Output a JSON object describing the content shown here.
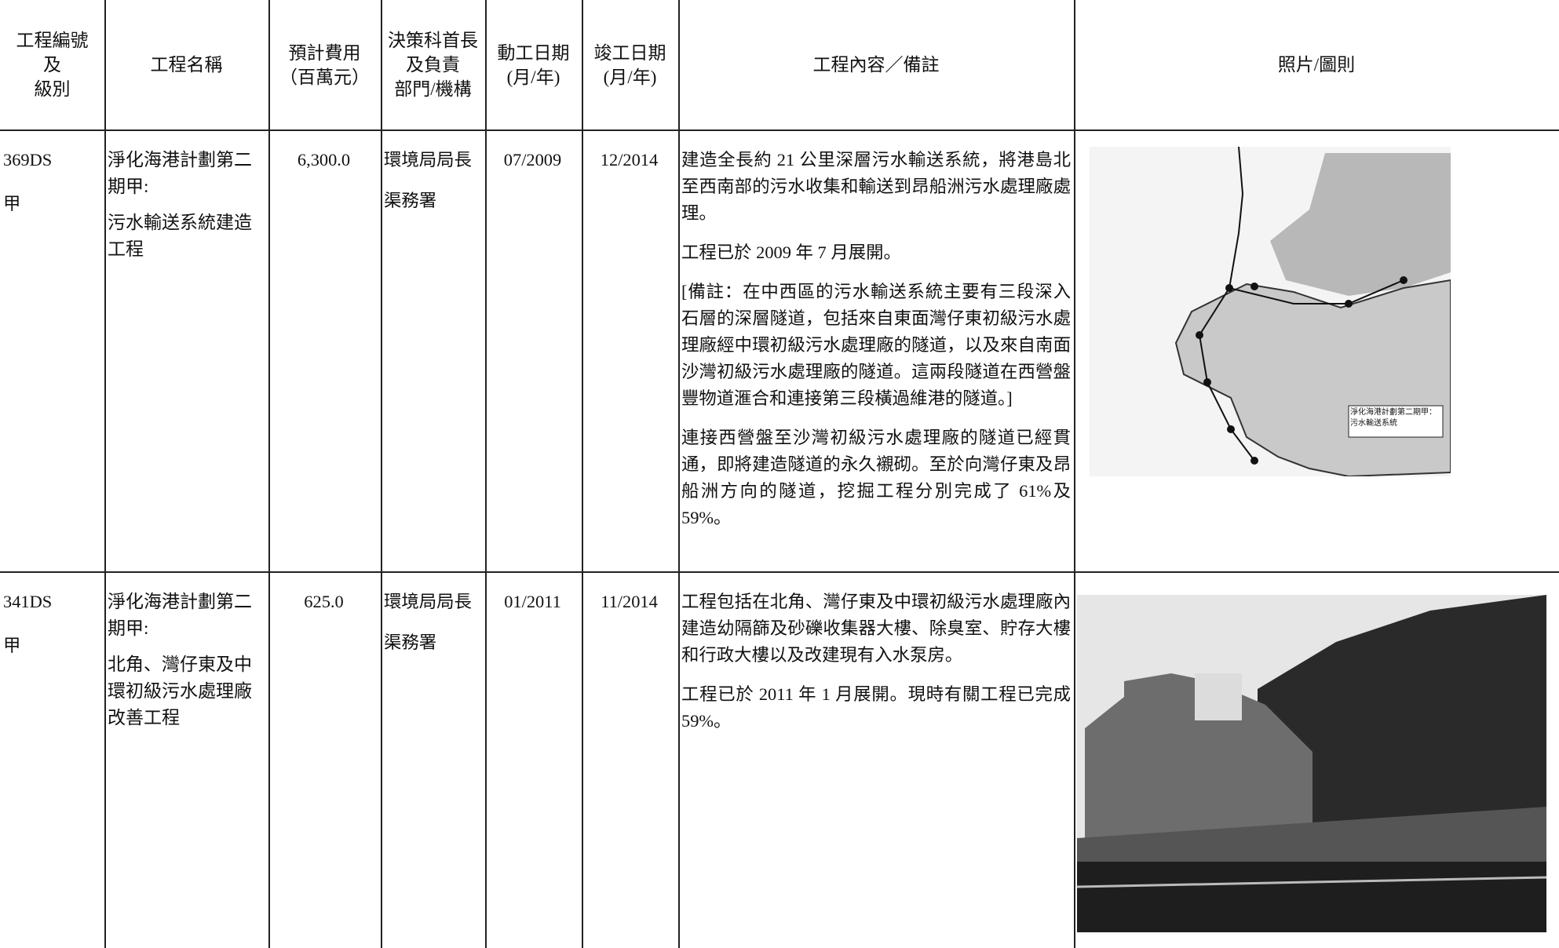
{
  "header": [
    [
      "工程編號",
      "及",
      "級別"
    ],
    [
      "工程名稱"
    ],
    [
      "預計費用",
      "（百萬元）"
    ],
    [
      "決策科首長",
      "及負責",
      "部門/機構"
    ],
    [
      "動工日期",
      "(月/年)"
    ],
    [
      "竣工日期",
      "(月/年)"
    ],
    [
      "工程內容／備註"
    ],
    [
      "照片/圖則"
    ]
  ],
  "rows": [
    {
      "code": [
        "369DS",
        "甲"
      ],
      "name": [
        "淨化海港計劃第二期甲:",
        "污水輸送系統建造工程"
      ],
      "cost": "6,300.0",
      "department": [
        "環境局局長",
        "渠務署"
      ],
      "start": "07/2009",
      "end": "12/2014",
      "content": [
        "建造全長約 21 公里深層污水輸送系統，將港島北至西南部的污水收集和輸送到昂船洲污水處理廠處理。",
        "工程已於 2009 年 7 月展開。",
        "[備註：在中西區的污水輸送系統主要有三段深入石層的深層隧道，包括來自東面灣仔東初級污水處理廠經中環初級污水處理廠的隧道，以及來自南面沙灣初級污水處理廠的隧道。這兩段隧道在西營盤豐物道滙合和連接第三段橫過維港的隧道。]",
        "連接西營盤至沙灣初級污水處理廠的隧道已經貫通，即將建造隧道的永久襯砌。至於向灣仔東及昂船洲方向的隧道，挖掘工程分別完成了 61%及 59%。"
      ],
      "map_label": "淨化海港計劃第二期甲：污水輸送系統"
    },
    {
      "code": [
        "341DS",
        "甲"
      ],
      "name": [
        "淨化海港計劃第二期甲:",
        "北角、灣仔東及中環初級污水處理廠改善工程"
      ],
      "cost": "625.0",
      "department": [
        "環境局局長",
        "渠務署"
      ],
      "start": "01/2011",
      "end": "11/2014",
      "content": [
        "工程包括在北角、灣仔東及中環初級污水處理廠內建造幼隔篩及砂礫收集器大樓、除臭室、貯存大樓和行政大樓以及改建現有入水泵房。",
        "工程已於 2011 年 1 月展開。現時有關工程已完成 59%。"
      ]
    }
  ]
}
